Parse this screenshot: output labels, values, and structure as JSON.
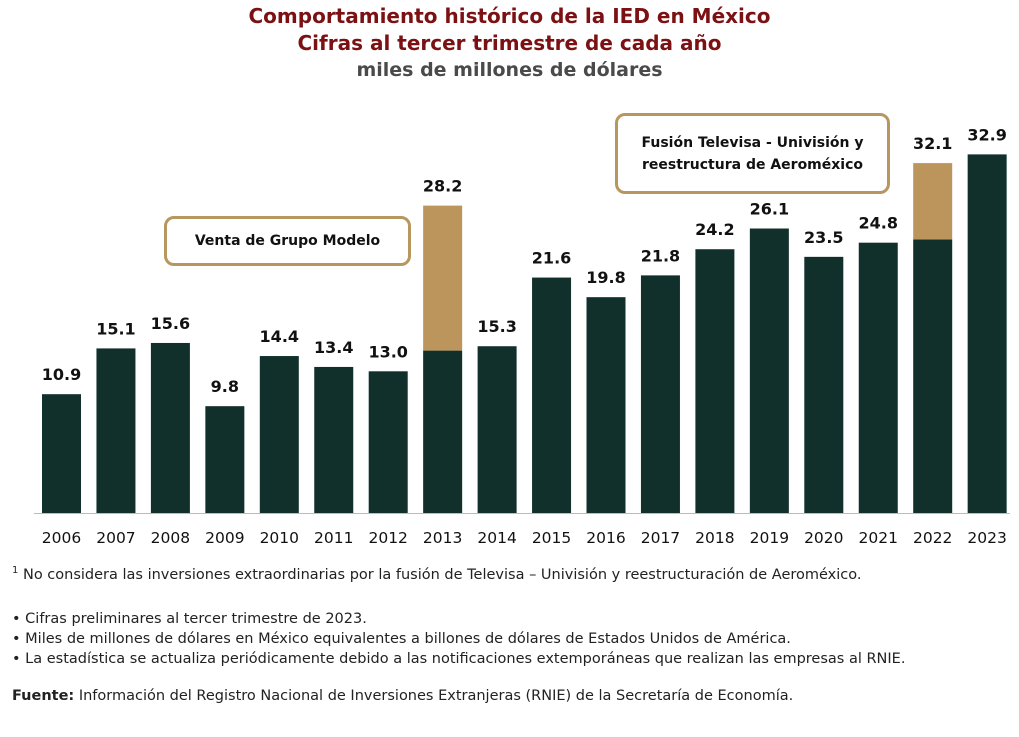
{
  "chart_data": {
    "type": "bar",
    "stacked": true,
    "title": "Comportamiento histórico de la IED en México",
    "subtitle": "Cifras al tercer trimestre de cada año",
    "ylabel": "miles de millones de dólares",
    "xlabel": "",
    "categories": [
      "2006",
      "2007",
      "2008",
      "2009",
      "2010",
      "2011",
      "2012",
      "2013",
      "2014",
      "2015",
      "2016",
      "2017",
      "2018",
      "2019",
      "2020",
      "2021",
      "2022",
      "2023"
    ],
    "series": [
      {
        "values": [
          10.9,
          15.1,
          15.6,
          9.8,
          14.4,
          13.4,
          13.0,
          14.9,
          15.3,
          21.6,
          19.8,
          21.8,
          24.2,
          26.1,
          23.5,
          24.8,
          25.1,
          32.9
        ],
        "color": "#12302b"
      },
      {
        "values": [
          0,
          0,
          0,
          0,
          0,
          0,
          0,
          13.3,
          0,
          0,
          0,
          0,
          0,
          0,
          0,
          0,
          7.0,
          0
        ],
        "color": "#bb955b"
      }
    ],
    "data_labels": [
      "10.9",
      "15.1",
      "15.6",
      "9.8",
      "14.4",
      "13.4",
      "13.0",
      "28.2",
      "15.3",
      "21.6",
      "19.8",
      "21.8",
      "24.2",
      "26.1",
      "23.5",
      "24.8",
      "32.1",
      "32.9"
    ],
    "ylim": [
      0,
      35
    ],
    "grid": false,
    "annotations": [
      {
        "text": "Venta de Grupo Modelo",
        "category": "2013"
      },
      {
        "text_line1": "Fusión Televisa - Univisión y",
        "text_line2": "reestructura de Aeroméxico",
        "category": "2022"
      }
    ]
  },
  "notes": {
    "footnote_mark": "1",
    "footnote": " No considera las inversiones extraordinarias por la fusión de Televisa – Univisión y reestructuración de Aeroméxico.",
    "bullets": [
      "Cifras preliminares al tercer trimestre de 2023.",
      "Miles de millones de dólares en México equivalentes a billones de dólares de Estados Unidos de América.",
      "La estadística se actualiza periódicamente debido a las notificaciones extemporáneas que realizan las empresas al RNIE."
    ],
    "source_label": "Fuente:",
    "source": " Información del Registro Nacional de Inversiones Extranjeras (RNIE) de la Secretaría de Economía."
  }
}
